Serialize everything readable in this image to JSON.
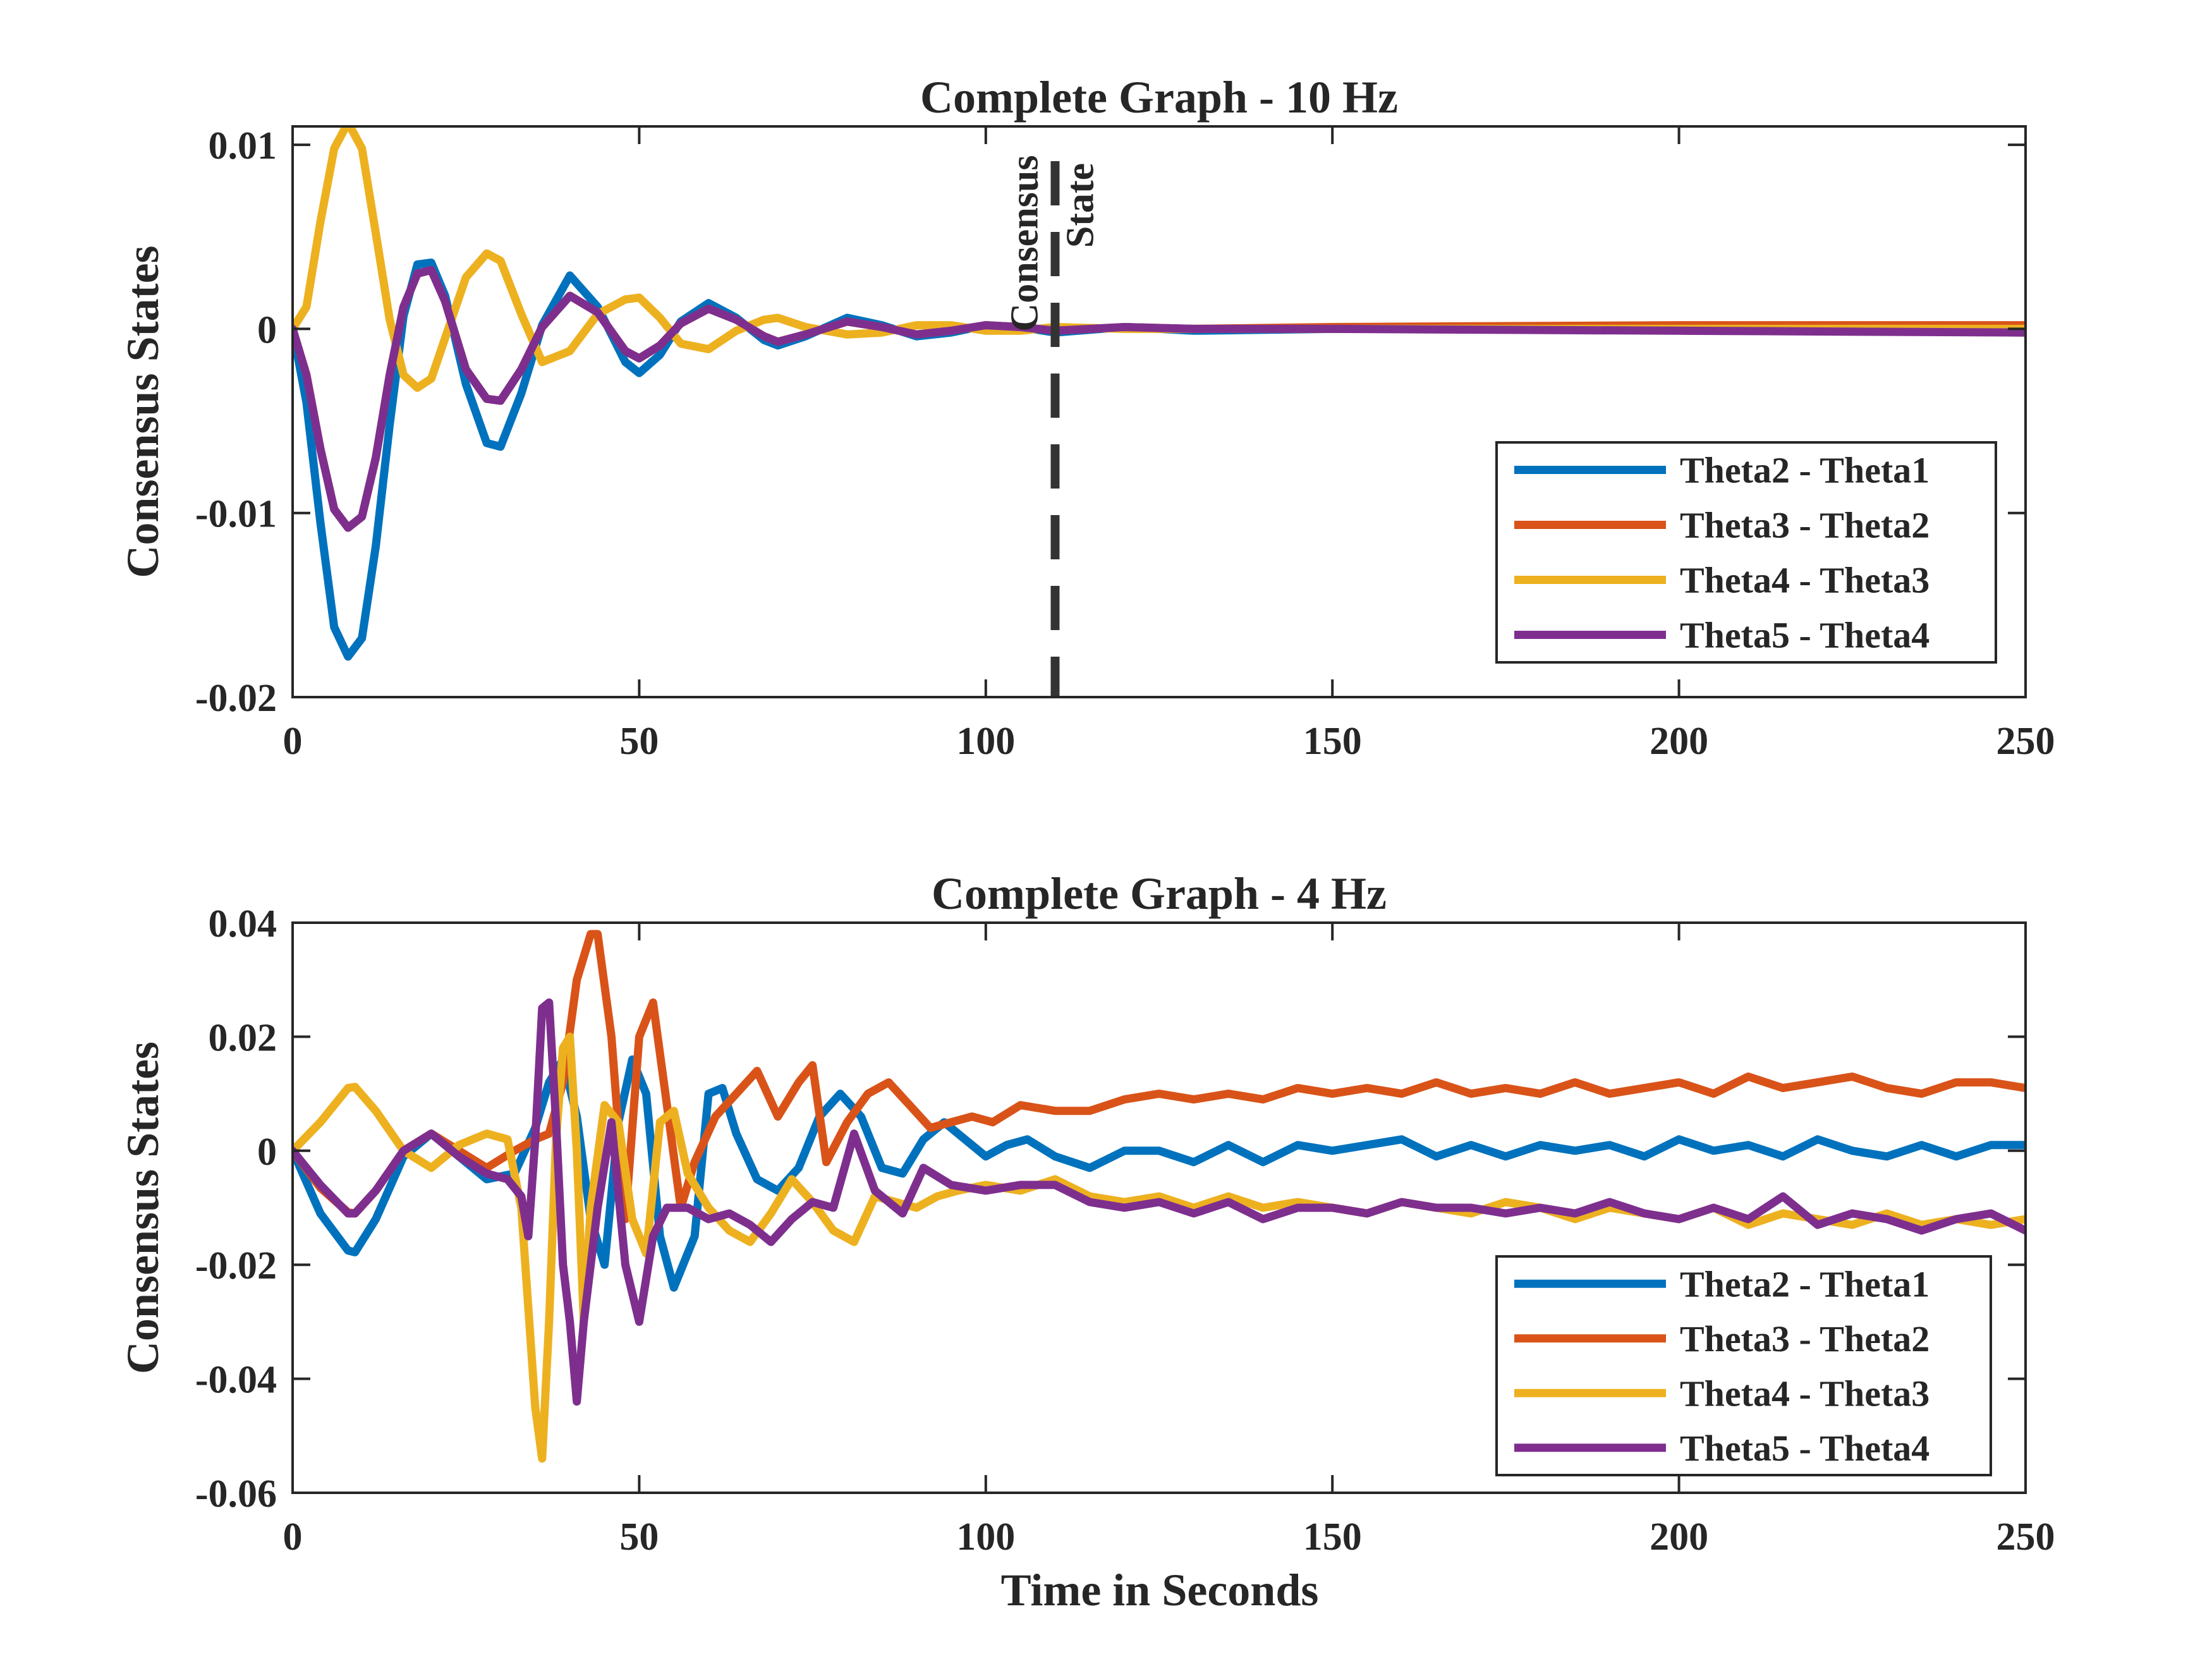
{
  "figure": {
    "xlabel": "Time in Seconds"
  },
  "colors": {
    "Theta2 - Theta1": "#0072BD",
    "Theta3 - Theta2": "#D95319",
    "Theta4 - Theta3": "#EDB120",
    "Theta5 - Theta4": "#7E2F8E",
    "axes": "#262626"
  },
  "chart_data": [
    {
      "type": "line",
      "title": "Complete Graph - 10 Hz",
      "xlabel": "",
      "ylabel": "Consensus States",
      "xlim": [
        0,
        250
      ],
      "ylim": [
        -0.02,
        0.011
      ],
      "xticks": [
        0,
        50,
        100,
        150,
        200,
        250
      ],
      "xtick_labels": [
        "0",
        "50",
        "100",
        "150",
        "200",
        "250"
      ],
      "yticks": [
        -0.02,
        -0.01,
        0,
        0.01
      ],
      "ytick_labels": [
        "-0.02",
        "-0.01",
        "0",
        "0.01"
      ],
      "grid": false,
      "legend": "bottom-right",
      "annotation": {
        "type": "vertical-dashed-line",
        "x": 110,
        "text_lines": [
          "Consensus",
          "State"
        ]
      },
      "series": [
        {
          "name": "Theta2 - Theta1",
          "color": "#0072BD",
          "x": [
            0,
            2,
            4,
            6,
            8,
            10,
            12,
            14,
            16,
            18,
            20,
            22,
            25,
            28,
            30,
            33,
            36,
            40,
            44,
            48,
            50,
            53,
            56,
            60,
            64,
            68,
            70,
            74,
            80,
            85,
            90,
            95,
            100,
            105,
            110,
            120,
            130,
            150,
            200,
            250
          ],
          "y": [
            0,
            -0.004,
            -0.0105,
            -0.0162,
            -0.0178,
            -0.0168,
            -0.0118,
            -0.0052,
            0.0007,
            0.0035,
            0.0036,
            0.0018,
            -0.003,
            -0.0062,
            -0.0064,
            -0.0035,
            0.0002,
            0.0029,
            0.0012,
            -0.0018,
            -0.0024,
            -0.0014,
            0.0004,
            0.0014,
            0.0006,
            -0.0006,
            -0.0009,
            -0.0004,
            0.0006,
            0.0002,
            -0.0004,
            -0.0002,
            0.0002,
            0.0001,
            -0.0002,
            0.0001,
            -0.0001,
            0,
            0,
            0
          ]
        },
        {
          "name": "Theta3 - Theta2",
          "color": "#D95319",
          "x": [
            0,
            2,
            4,
            6,
            8,
            10,
            12,
            14,
            16,
            18,
            20,
            22,
            25,
            28,
            30,
            33,
            36,
            40,
            44,
            48,
            50,
            53,
            56,
            60,
            64,
            68,
            70,
            74,
            80,
            85,
            90,
            95,
            100,
            105,
            110,
            120,
            130,
            150,
            200,
            250
          ],
          "y": [
            0,
            -0.0025,
            -0.0065,
            -0.0098,
            -0.0108,
            -0.0102,
            -0.007,
            -0.0025,
            0.0012,
            0.003,
            0.0032,
            0.0015,
            -0.0022,
            -0.0038,
            -0.0039,
            -0.0022,
            0.0001,
            0.0018,
            0.0009,
            -0.0012,
            -0.0016,
            -0.0009,
            0.0003,
            0.0011,
            0.0005,
            -0.0004,
            -0.0007,
            -0.0003,
            0.0004,
            0.0001,
            -0.0003,
            -0.0001,
            0.0002,
            0.0001,
            -0.0001,
            0.0001,
            0,
            0.0001,
            0.0002,
            0.0002
          ]
        },
        {
          "name": "Theta4 - Theta3",
          "color": "#EDB120",
          "x": [
            0,
            2,
            4,
            6,
            8,
            10,
            12,
            14,
            16,
            18,
            20,
            22,
            25,
            28,
            30,
            33,
            36,
            40,
            44,
            48,
            50,
            53,
            56,
            60,
            64,
            68,
            70,
            74,
            80,
            85,
            90,
            95,
            100,
            105,
            110,
            120,
            130,
            150,
            200,
            250
          ],
          "y": [
            0,
            0.0012,
            0.0058,
            0.0098,
            0.0112,
            0.0098,
            0.0052,
            0.0005,
            -0.0025,
            -0.0032,
            -0.0027,
            -0.0005,
            0.0028,
            0.0041,
            0.0037,
            0.0008,
            -0.0018,
            -0.0012,
            0.0008,
            0.0016,
            0.0017,
            0.0006,
            -0.0008,
            -0.0011,
            -0.0001,
            0.0005,
            0.0006,
            0.0001,
            -0.0003,
            -0.0002,
            0.0002,
            0.0002,
            -0.0001,
            -0.0001,
            0.0001,
            0,
            0,
            0,
            0,
            0
          ]
        },
        {
          "name": "Theta5 - Theta4",
          "color": "#7E2F8E",
          "x": [
            0,
            2,
            4,
            6,
            8,
            10,
            12,
            14,
            16,
            18,
            20,
            22,
            25,
            28,
            30,
            33,
            36,
            40,
            44,
            48,
            50,
            53,
            56,
            60,
            64,
            68,
            70,
            74,
            80,
            85,
            90,
            95,
            100,
            105,
            110,
            120,
            130,
            150,
            200,
            250
          ],
          "y": [
            0,
            -0.0025,
            -0.0065,
            -0.0098,
            -0.0108,
            -0.0102,
            -0.007,
            -0.0025,
            0.0012,
            0.003,
            0.0032,
            0.0015,
            -0.0022,
            -0.0038,
            -0.0039,
            -0.0022,
            0.0001,
            0.0018,
            0.0009,
            -0.0012,
            -0.0016,
            -0.0009,
            0.0003,
            0.0011,
            0.0005,
            -0.0004,
            -0.0007,
            -0.0003,
            0.0004,
            0.0001,
            -0.0003,
            -0.0001,
            0.0002,
            0.0001,
            -0.0001,
            0.0001,
            0,
            0,
            -0.0001,
            -0.0002
          ]
        }
      ]
    },
    {
      "type": "line",
      "title": "Complete Graph - 4 Hz",
      "xlabel": "Time in Seconds",
      "ylabel": "Consensus States",
      "xlim": [
        0,
        250
      ],
      "ylim": [
        -0.06,
        0.04
      ],
      "xticks": [
        0,
        50,
        100,
        150,
        200,
        250
      ],
      "xtick_labels": [
        "0",
        "50",
        "100",
        "150",
        "200",
        "250"
      ],
      "yticks": [
        -0.06,
        -0.04,
        -0.02,
        0,
        0.02,
        0.04
      ],
      "ytick_labels": [
        "-0.06",
        "-0.04",
        "-0.02",
        "0",
        "0.02",
        "0.04"
      ],
      "grid": false,
      "legend": "bottom-right",
      "series": [
        {
          "name": "Theta2 - Theta1",
          "color": "#0072BD",
          "x": [
            0,
            4,
            8,
            9,
            12,
            16,
            20,
            24,
            28,
            32,
            35,
            37,
            39,
            41,
            43,
            45,
            47,
            49,
            51,
            53,
            55,
            58,
            60,
            62,
            64,
            67,
            70,
            73,
            76,
            79,
            82,
            85,
            88,
            91,
            94,
            97,
            100,
            103,
            106,
            110,
            115,
            120,
            125,
            130,
            135,
            140,
            145,
            150,
            155,
            160,
            165,
            170,
            175,
            180,
            185,
            190,
            195,
            200,
            205,
            210,
            215,
            220,
            225,
            230,
            235,
            240,
            245,
            250
          ],
          "y": [
            0,
            -0.011,
            -0.0175,
            -0.0178,
            -0.012,
            -0.001,
            0.003,
            -0.001,
            -0.005,
            -0.004,
            0.004,
            0.012,
            0.016,
            0.006,
            -0.012,
            -0.02,
            0.005,
            0.016,
            0.01,
            -0.015,
            -0.024,
            -0.015,
            0.01,
            0.011,
            0.003,
            -0.005,
            -0.007,
            -0.003,
            0.006,
            0.01,
            0.006,
            -0.003,
            -0.004,
            0.002,
            0.005,
            0.002,
            -0.001,
            0.001,
            0.002,
            -0.001,
            -0.003,
            0,
            0,
            -0.002,
            0.001,
            -0.002,
            0.001,
            0,
            0.001,
            0.002,
            -0.001,
            0.001,
            -0.001,
            0.001,
            0,
            0.001,
            -0.001,
            0.002,
            0,
            0.001,
            -0.001,
            0.002,
            0,
            -0.001,
            0.001,
            -0.001,
            0.001,
            0.001
          ]
        },
        {
          "name": "Theta3 - Theta2",
          "color": "#D95319",
          "x": [
            0,
            4,
            8,
            9,
            12,
            16,
            20,
            24,
            28,
            32,
            35,
            37,
            39,
            41,
            43,
            44,
            46,
            48,
            50,
            52,
            54,
            56,
            58,
            61,
            64,
            67,
            70,
            73,
            75,
            77,
            80,
            83,
            86,
            89,
            92,
            95,
            98,
            101,
            105,
            110,
            115,
            120,
            125,
            130,
            135,
            140,
            145,
            150,
            155,
            160,
            165,
            170,
            175,
            180,
            185,
            190,
            195,
            200,
            205,
            210,
            215,
            220,
            225,
            230,
            235,
            240,
            245,
            250
          ],
          "y": [
            0,
            -0.0065,
            -0.0108,
            -0.011,
            -0.007,
            0,
            0.003,
            0,
            -0.003,
            0,
            0.002,
            0.003,
            0.012,
            0.03,
            0.038,
            0.038,
            0.02,
            -0.012,
            0.02,
            0.026,
            0.008,
            -0.01,
            -0.002,
            0.006,
            0.01,
            0.014,
            0.006,
            0.012,
            0.015,
            -0.002,
            0.005,
            0.01,
            0.012,
            0.008,
            0.004,
            0.005,
            0.006,
            0.005,
            0.008,
            0.007,
            0.007,
            0.009,
            0.01,
            0.009,
            0.01,
            0.009,
            0.011,
            0.01,
            0.011,
            0.01,
            0.012,
            0.01,
            0.011,
            0.01,
            0.012,
            0.01,
            0.011,
            0.012,
            0.01,
            0.013,
            0.011,
            0.012,
            0.013,
            0.011,
            0.01,
            0.012,
            0.012,
            0.011
          ]
        },
        {
          "name": "Theta4 - Theta3",
          "color": "#EDB120",
          "x": [
            0,
            4,
            8,
            9,
            12,
            16,
            20,
            24,
            28,
            31,
            33,
            35,
            36,
            37,
            38,
            39,
            40,
            41,
            42,
            43,
            45,
            47,
            49,
            51,
            53,
            55,
            57,
            60,
            63,
            66,
            69,
            72,
            75,
            78,
            81,
            84,
            87,
            90,
            93,
            96,
            100,
            105,
            110,
            115,
            120,
            125,
            130,
            135,
            140,
            145,
            150,
            155,
            160,
            165,
            170,
            175,
            180,
            185,
            190,
            195,
            200,
            205,
            210,
            215,
            220,
            225,
            230,
            235,
            240,
            245,
            250
          ],
          "y": [
            0,
            0.005,
            0.011,
            0.0112,
            0.007,
            0,
            -0.003,
            0.001,
            0.003,
            0.002,
            -0.01,
            -0.045,
            -0.054,
            -0.03,
            0.002,
            0.018,
            0.02,
            0,
            -0.03,
            -0.01,
            0.008,
            0.005,
            -0.012,
            -0.018,
            0.005,
            0.007,
            -0.004,
            -0.01,
            -0.014,
            -0.016,
            -0.011,
            -0.005,
            -0.009,
            -0.014,
            -0.016,
            -0.008,
            -0.009,
            -0.01,
            -0.008,
            -0.007,
            -0.006,
            -0.007,
            -0.005,
            -0.008,
            -0.009,
            -0.008,
            -0.01,
            -0.008,
            -0.01,
            -0.009,
            -0.01,
            -0.011,
            -0.009,
            -0.01,
            -0.011,
            -0.009,
            -0.01,
            -0.012,
            -0.01,
            -0.011,
            -0.012,
            -0.01,
            -0.013,
            -0.011,
            -0.012,
            -0.013,
            -0.011,
            -0.013,
            -0.012,
            -0.013,
            -0.012
          ]
        },
        {
          "name": "Theta5 - Theta4",
          "color": "#7E2F8E",
          "x": [
            0,
            4,
            8,
            9,
            12,
            16,
            20,
            24,
            28,
            31,
            33,
            34,
            35,
            36,
            37,
            38,
            39,
            40,
            41,
            42,
            44,
            46,
            48,
            50,
            52,
            54,
            57,
            60,
            63,
            66,
            69,
            72,
            75,
            78,
            81,
            84,
            88,
            91,
            95,
            100,
            105,
            110,
            115,
            120,
            125,
            130,
            135,
            140,
            145,
            150,
            155,
            160,
            165,
            170,
            175,
            180,
            185,
            190,
            195,
            200,
            205,
            210,
            215,
            220,
            225,
            230,
            235,
            240,
            245,
            250
          ],
          "y": [
            0,
            -0.006,
            -0.011,
            -0.011,
            -0.007,
            0,
            0.003,
            -0.001,
            -0.004,
            -0.005,
            -0.008,
            -0.015,
            0.002,
            0.025,
            0.026,
            0.005,
            -0.02,
            -0.03,
            -0.044,
            -0.03,
            -0.01,
            0.005,
            -0.02,
            -0.03,
            -0.015,
            -0.01,
            -0.01,
            -0.012,
            -0.011,
            -0.013,
            -0.016,
            -0.012,
            -0.009,
            -0.01,
            0.003,
            -0.007,
            -0.011,
            -0.003,
            -0.006,
            -0.007,
            -0.006,
            -0.006,
            -0.009,
            -0.01,
            -0.009,
            -0.011,
            -0.009,
            -0.012,
            -0.01,
            -0.01,
            -0.011,
            -0.009,
            -0.01,
            -0.01,
            -0.011,
            -0.01,
            -0.011,
            -0.009,
            -0.011,
            -0.012,
            -0.01,
            -0.012,
            -0.008,
            -0.013,
            -0.011,
            -0.012,
            -0.014,
            -0.012,
            -0.011,
            -0.014
          ]
        }
      ]
    }
  ]
}
